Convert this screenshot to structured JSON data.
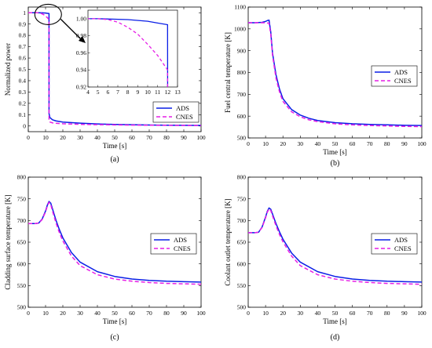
{
  "colors": {
    "ads": "#0a1ee6",
    "cnes": "#e61ee6",
    "frame": "#000000"
  },
  "legend": {
    "ads": "ADS",
    "cnes": "CNES"
  },
  "chart_data": [
    {
      "type": "line",
      "caption": "(a)",
      "xlabel": "Time [s]",
      "ylabel": "Normalized power",
      "xlim": [
        0,
        100
      ],
      "ylim": [
        -0.05,
        1.05
      ],
      "xticks": [
        0,
        10,
        20,
        30,
        40,
        50,
        60,
        70,
        80,
        90,
        100
      ],
      "yticks": [
        0,
        0.1,
        0.2,
        0.3,
        0.4,
        0.5,
        0.6,
        0.7,
        0.8,
        0.9,
        1
      ],
      "ytick_labels": [
        "0",
        "0.1",
        "0.2",
        "0.3",
        "0.4",
        "0.5",
        "0.6",
        "0.7",
        "0.8",
        "0.9",
        "1"
      ],
      "legend_position": "lower-right",
      "grid": false,
      "series": [
        {
          "name": "ADS",
          "x": [
            0,
            5,
            8,
            10,
            11,
            12,
            12.01,
            12.5,
            14,
            16,
            20,
            30,
            40,
            50,
            60,
            70,
            80,
            90,
            100
          ],
          "y": [
            1.0,
            1.0,
            0.999,
            0.997,
            0.995,
            0.993,
            0.11,
            0.075,
            0.055,
            0.045,
            0.035,
            0.025,
            0.018,
            0.014,
            0.011,
            0.009,
            0.007,
            0.006,
            0.005
          ]
        },
        {
          "name": "CNES",
          "x": [
            0,
            5,
            6,
            7,
            8,
            9,
            10,
            11,
            12,
            12.01,
            12.5,
            14,
            16,
            20,
            30,
            40,
            50,
            60,
            70,
            80,
            90,
            100
          ],
          "y": [
            1.0,
            1.0,
            0.999,
            0.996,
            0.99,
            0.982,
            0.97,
            0.957,
            0.94,
            0.05,
            0.035,
            0.028,
            0.024,
            0.02,
            0.015,
            0.012,
            0.01,
            0.008,
            0.007,
            0.006,
            0.005,
            0.004
          ]
        }
      ],
      "inset": {
        "xlim": [
          4,
          13
        ],
        "ylim": [
          0.92,
          1.01
        ],
        "xticks": [
          4,
          5,
          6,
          7,
          8,
          9,
          10,
          11,
          12,
          13
        ],
        "yticks": [
          0.92,
          0.94,
          0.96,
          0.98,
          1.0
        ],
        "ytick_labels": [
          "0.92",
          "0.94",
          "0.96",
          "0.98",
          "1.00"
        ]
      }
    },
    {
      "type": "line",
      "caption": "(b)",
      "xlabel": "Time [s]",
      "ylabel": "Fuel central temperature [K]",
      "xlim": [
        0,
        100
      ],
      "ylim": [
        500,
        1100
      ],
      "xticks": [
        0,
        10,
        20,
        30,
        40,
        50,
        60,
        70,
        80,
        90,
        100
      ],
      "yticks": [
        500,
        600,
        700,
        800,
        900,
        1000,
        1100
      ],
      "legend_position": "center-right",
      "grid": false,
      "series": [
        {
          "name": "ADS",
          "x": [
            0,
            4,
            8,
            10,
            11,
            12,
            13,
            14,
            16,
            18,
            20,
            25,
            30,
            35,
            40,
            50,
            60,
            70,
            80,
            90,
            100
          ],
          "y": [
            1028,
            1028,
            1030,
            1034,
            1038,
            1040,
            985,
            890,
            790,
            725,
            680,
            630,
            605,
            590,
            580,
            570,
            565,
            562,
            560,
            558,
            557
          ]
        },
        {
          "name": "CNES",
          "x": [
            0,
            4,
            8,
            10,
            11,
            12,
            13,
            14,
            16,
            18,
            20,
            25,
            30,
            35,
            40,
            50,
            60,
            70,
            80,
            90,
            100
          ],
          "y": [
            1028,
            1028,
            1028,
            1028,
            1027,
            1026,
            975,
            880,
            775,
            712,
            668,
            620,
            597,
            583,
            575,
            565,
            560,
            557,
            555,
            553,
            552
          ]
        }
      ]
    },
    {
      "type": "line",
      "caption": "(c)",
      "xlabel": "Time [s]",
      "ylabel": "Cladding surface temperature [K]",
      "xlim": [
        0,
        100
      ],
      "ylim": [
        500,
        800
      ],
      "xticks": [
        0,
        10,
        20,
        30,
        40,
        50,
        60,
        70,
        80,
        90,
        100
      ],
      "yticks": [
        500,
        550,
        600,
        650,
        700,
        750,
        800
      ],
      "legend_position": "center-right",
      "grid": false,
      "series": [
        {
          "name": "ADS",
          "x": [
            0,
            4,
            6,
            8,
            10,
            11,
            12,
            13,
            14,
            16,
            18,
            20,
            25,
            30,
            40,
            50,
            60,
            70,
            80,
            90,
            100
          ],
          "y": [
            693,
            693,
            694,
            703,
            722,
            735,
            744,
            740,
            727,
            701,
            679,
            660,
            626,
            604,
            582,
            571,
            565,
            562,
            560,
            559,
            558
          ]
        },
        {
          "name": "CNES",
          "x": [
            0,
            4,
            6,
            8,
            10,
            11,
            12,
            13,
            14,
            16,
            18,
            20,
            25,
            30,
            40,
            50,
            60,
            70,
            80,
            90,
            100
          ],
          "y": [
            693,
            693,
            694,
            702,
            720,
            733,
            742,
            737,
            722,
            695,
            672,
            653,
            618,
            596,
            575,
            565,
            560,
            557,
            555,
            554,
            553
          ]
        }
      ]
    },
    {
      "type": "line",
      "caption": "(d)",
      "xlabel": "Time [s]",
      "ylabel": "Coolant outlet temperature [K]",
      "xlim": [
        0,
        100
      ],
      "ylim": [
        500,
        800
      ],
      "xticks": [
        0,
        10,
        20,
        30,
        40,
        50,
        60,
        70,
        80,
        90,
        100
      ],
      "yticks": [
        500,
        550,
        600,
        650,
        700,
        750,
        800
      ],
      "legend_position": "center-right",
      "grid": false,
      "series": [
        {
          "name": "ADS",
          "x": [
            0,
            4,
            6,
            8,
            10,
            11,
            12,
            13,
            14,
            16,
            18,
            20,
            25,
            30,
            40,
            50,
            60,
            70,
            80,
            90,
            100
          ],
          "y": [
            672,
            672,
            673,
            685,
            708,
            721,
            729,
            726,
            715,
            693,
            674,
            657,
            625,
            604,
            582,
            571,
            565,
            562,
            560,
            559,
            558
          ]
        },
        {
          "name": "CNES",
          "x": [
            0,
            4,
            6,
            8,
            10,
            11,
            12,
            13,
            14,
            16,
            18,
            20,
            25,
            30,
            40,
            50,
            60,
            70,
            80,
            90,
            100
          ],
          "y": [
            672,
            672,
            673,
            684,
            706,
            719,
            727,
            723,
            711,
            688,
            668,
            651,
            618,
            596,
            575,
            565,
            560,
            557,
            555,
            554,
            553
          ]
        }
      ]
    }
  ]
}
